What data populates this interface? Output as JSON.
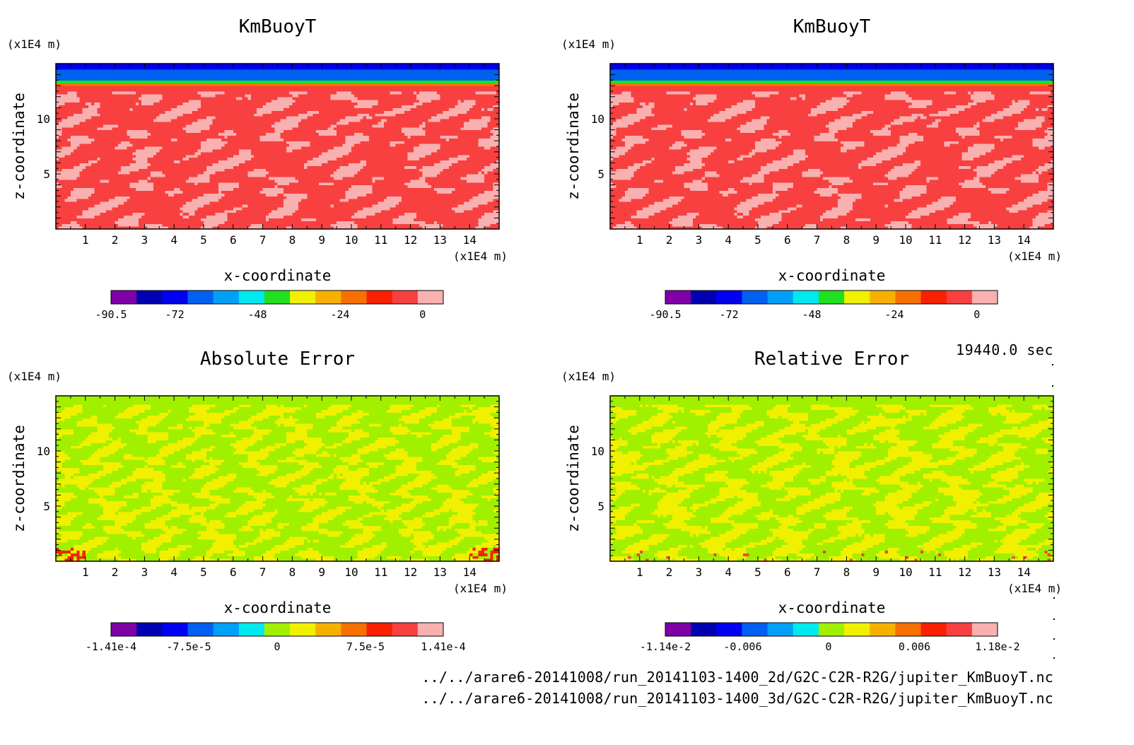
{
  "time_label": "19440.0 sec",
  "file_paths": [
    "../../arare6-20141008/run_20141103-1400_2d/G2C-C2R-R2G/jupiter_KmBuoyT.nc",
    "../../arare6-20141008/run_20141103-1400_3d/G2C-C2R-R2G/jupiter_KmBuoyT.nc"
  ],
  "chart_data": [
    {
      "type": "heatmap",
      "title": "KmBuoyT",
      "xlabel": "x-coordinate",
      "ylabel": "z-coordinate",
      "x_unit": "(x1E4 m)",
      "y_unit": "(x1E4 m)",
      "xlim": [
        0,
        15
      ],
      "ylim": [
        0,
        15
      ],
      "x_ticks": [
        "1",
        "2",
        "3",
        "4",
        "5",
        "6",
        "7",
        "8",
        "9",
        "10",
        "11",
        "12",
        "13",
        "14"
      ],
      "y_ticks": [
        "5",
        "10"
      ],
      "field": "kmbuoyt",
      "colorbar": {
        "range": [
          -90.5,
          6.0
        ],
        "labels": [
          "-90.5",
          "-72",
          "-48",
          "-24",
          "0"
        ],
        "label_values": [
          -90.5,
          -72,
          -48,
          -24,
          0
        ],
        "colors": [
          "#8000a8",
          "#0000b0",
          "#0000f0",
          "#0060f0",
          "#00a0f8",
          "#00e8f0",
          "#20e020",
          "#f0f000",
          "#f8b000",
          "#f87000",
          "#f82000",
          "#f84040",
          "#f8b0b0"
        ]
      }
    },
    {
      "type": "heatmap",
      "title": "KmBuoyT",
      "xlabel": "x-coordinate",
      "ylabel": "z-coordinate",
      "x_unit": "(x1E4 m)",
      "y_unit": "(x1E4 m)",
      "xlim": [
        0,
        15
      ],
      "ylim": [
        0,
        15
      ],
      "x_ticks": [
        "1",
        "2",
        "3",
        "4",
        "5",
        "6",
        "7",
        "8",
        "9",
        "10",
        "11",
        "12",
        "13",
        "14"
      ],
      "y_ticks": [
        "5",
        "10"
      ],
      "field": "kmbuoyt",
      "colorbar": {
        "range": [
          -90.5,
          6.0
        ],
        "labels": [
          "-90.5",
          "-72",
          "-48",
          "-24",
          "0"
        ],
        "label_values": [
          -90.5,
          -72,
          -48,
          -24,
          0
        ],
        "colors": [
          "#8000a8",
          "#0000b0",
          "#0000f0",
          "#0060f0",
          "#00a0f8",
          "#00e8f0",
          "#20e020",
          "#f0f000",
          "#f8b000",
          "#f87000",
          "#f82000",
          "#f84040",
          "#f8b0b0"
        ]
      }
    },
    {
      "type": "heatmap",
      "title": "Absolute Error",
      "xlabel": "x-coordinate",
      "ylabel": "z-coordinate",
      "x_unit": "(x1E4 m)",
      "y_unit": "(x1E4 m)",
      "xlim": [
        0,
        15
      ],
      "ylim": [
        0,
        15
      ],
      "x_ticks": [
        "1",
        "2",
        "3",
        "4",
        "5",
        "6",
        "7",
        "8",
        "9",
        "10",
        "11",
        "12",
        "13",
        "14"
      ],
      "y_ticks": [
        "5",
        "10"
      ],
      "field": "abs_error",
      "colorbar": {
        "range": [
          -0.000141,
          0.000141
        ],
        "labels": [
          "-1.41e-4",
          "-7.5e-5",
          "0",
          "7.5e-5",
          "1.41e-4"
        ],
        "label_values": [
          -0.000141,
          -7.5e-05,
          0,
          7.5e-05,
          0.000141
        ],
        "colors": [
          "#8000a8",
          "#0000b0",
          "#0000f0",
          "#0060f0",
          "#00a0f8",
          "#00e8f0",
          "#a0f000",
          "#f0f000",
          "#f8b000",
          "#f87000",
          "#f82000",
          "#f84040",
          "#f8b0b0"
        ]
      }
    },
    {
      "type": "heatmap",
      "title": "Relative Error",
      "xlabel": "x-coordinate",
      "ylabel": "z-coordinate",
      "x_unit": "(x1E4 m)",
      "y_unit": "(x1E4 m)",
      "xlim": [
        0,
        15
      ],
      "ylim": [
        0,
        15
      ],
      "x_ticks": [
        "1",
        "2",
        "3",
        "4",
        "5",
        "6",
        "7",
        "8",
        "9",
        "10",
        "11",
        "12",
        "13",
        "14"
      ],
      "y_ticks": [
        "5",
        "10"
      ],
      "field": "rel_error",
      "colorbar": {
        "range": [
          -0.0114,
          0.0118
        ],
        "labels": [
          "-1.14e-2",
          "-0.006",
          "0",
          "0.006",
          "1.18e-2"
        ],
        "label_values": [
          -0.0114,
          -0.006,
          0,
          0.006,
          0.0118
        ],
        "colors": [
          "#8000a8",
          "#0000b0",
          "#0000f0",
          "#0060f0",
          "#00a0f8",
          "#00e8f0",
          "#a0f000",
          "#f0f000",
          "#f8b000",
          "#f87000",
          "#f82000",
          "#f84040",
          "#f8b0b0"
        ]
      }
    }
  ]
}
